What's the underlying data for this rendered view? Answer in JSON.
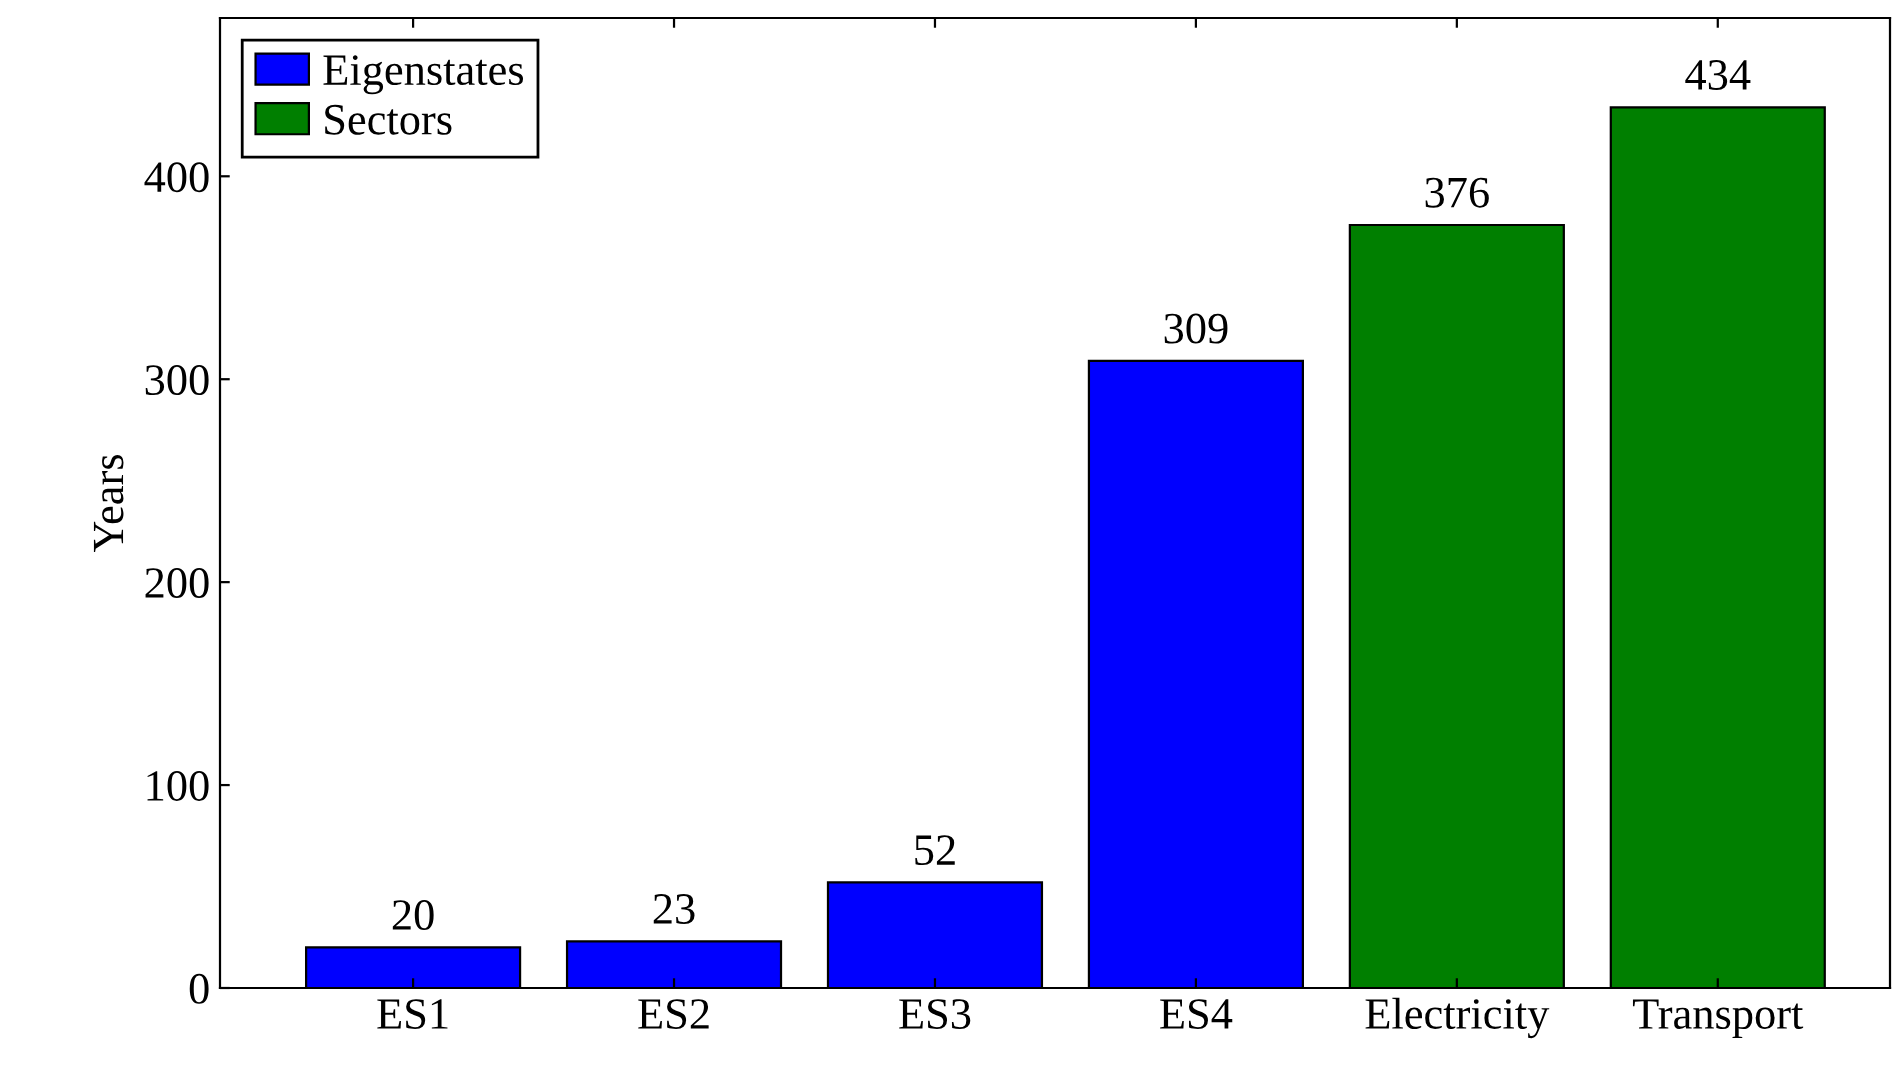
{
  "chart_data": {
    "type": "bar",
    "ylabel": "Years",
    "categories": [
      "ES1",
      "ES2",
      "ES3",
      "ES4",
      "Electricity",
      "Transport"
    ],
    "series": [
      {
        "name": "Eigenstates",
        "color": "#0000ff",
        "values": [
          20,
          23,
          52,
          309,
          null,
          null
        ]
      },
      {
        "name": "Sectors",
        "color": "#007f00",
        "values": [
          null,
          null,
          null,
          null,
          376,
          434
        ]
      }
    ],
    "ylim": [
      0,
      478
    ],
    "yticks": [
      0,
      100,
      200,
      300,
      400
    ],
    "data_labels": true,
    "grid": false,
    "legend": "top left"
  }
}
